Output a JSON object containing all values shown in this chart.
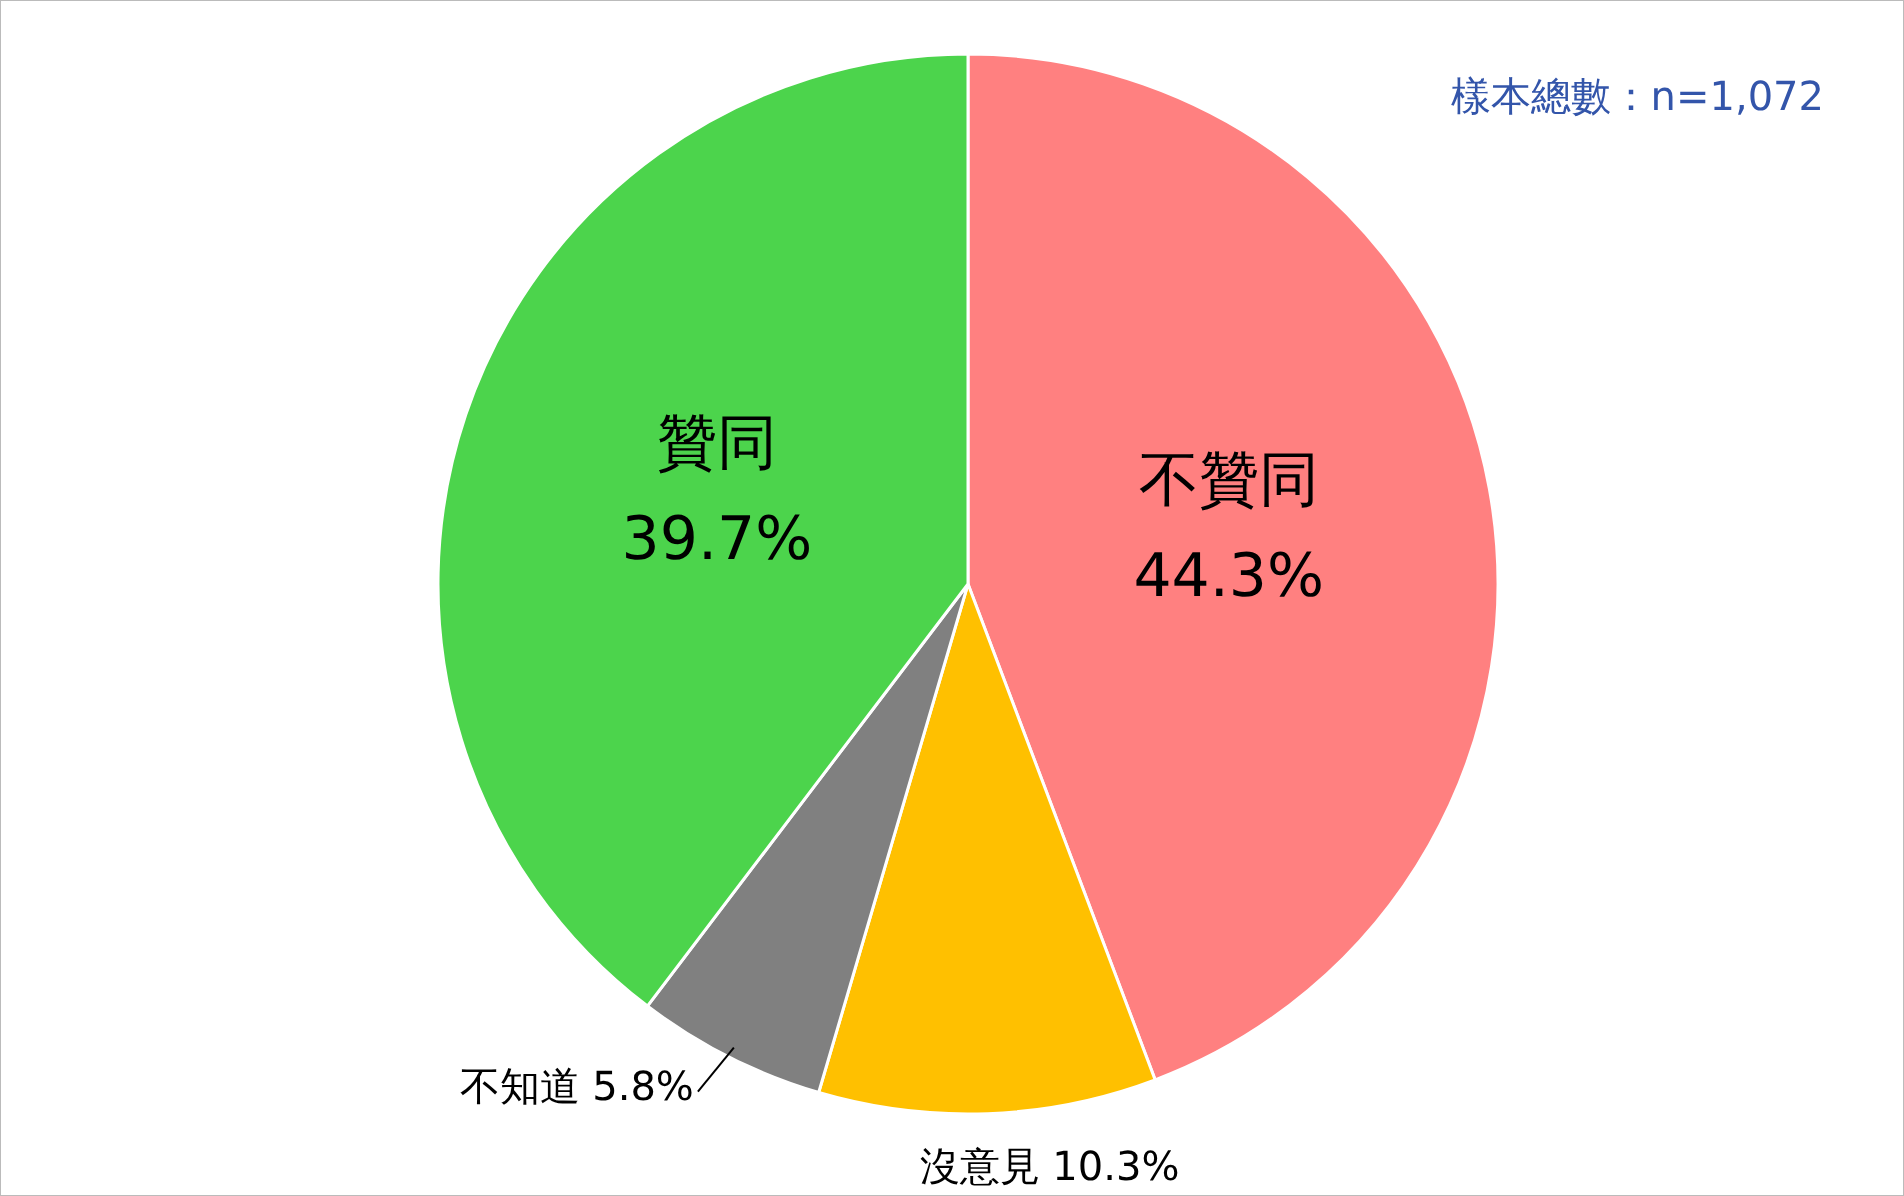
{
  "chart_data": {
    "type": "pie",
    "categories": [
      "不贊同",
      "沒意見",
      "不知道",
      "贊同"
    ],
    "values": [
      44.3,
      10.3,
      5.8,
      39.7
    ],
    "colors": [
      "#ff8080",
      "#ffc000",
      "#808080",
      "#4cd44c"
    ],
    "value_labels": [
      "44.3%",
      "10.3%",
      "5.8%",
      "39.7%"
    ],
    "annotations": [
      "樣本總數：n=1,072"
    ]
  }
}
